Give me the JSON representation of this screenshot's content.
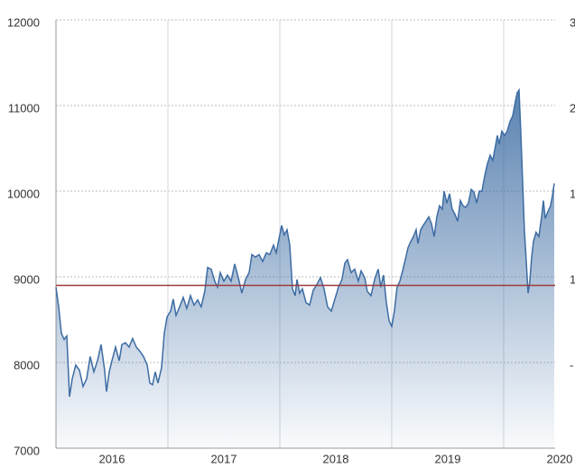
{
  "chart_data": {
    "type": "area-line",
    "x": [
      2016.0,
      2016.024,
      2016.048,
      2016.073,
      2016.097,
      2016.121,
      2016.145,
      2016.177,
      2016.21,
      2016.242,
      2016.274,
      2016.306,
      2016.339,
      2016.371,
      2016.403,
      2016.435,
      2016.452,
      2016.476,
      2016.5,
      2016.532,
      2016.565,
      2016.589,
      2016.621,
      2016.653,
      2016.685,
      2016.718,
      2016.75,
      2016.782,
      2016.815,
      2016.839,
      2016.863,
      2016.887,
      2016.911,
      2016.944,
      2016.968,
      2016.992,
      2017.024,
      2017.048,
      2017.073,
      2017.105,
      2017.137,
      2017.169,
      2017.202,
      2017.234,
      2017.266,
      2017.298,
      2017.331,
      2017.355,
      2017.387,
      2017.419,
      2017.444,
      2017.468,
      2017.5,
      2017.532,
      2017.565,
      2017.597,
      2017.629,
      2017.661,
      2017.694,
      2017.726,
      2017.75,
      2017.782,
      2017.815,
      2017.847,
      2017.879,
      2017.911,
      2017.944,
      2017.968,
      2017.992,
      2018.016,
      2018.04,
      2018.065,
      2018.089,
      2018.113,
      2018.137,
      2018.153,
      2018.177,
      2018.202,
      2018.234,
      2018.266,
      2018.298,
      2018.331,
      2018.363,
      2018.395,
      2018.427,
      2018.46,
      2018.492,
      2018.524,
      2018.556,
      2018.581,
      2018.605,
      2018.637,
      2018.669,
      2018.702,
      2018.726,
      2018.758,
      2018.782,
      2018.815,
      2018.847,
      2018.879,
      2018.903,
      2018.927,
      2018.952,
      2018.976,
      2019.0,
      2019.024,
      2019.048,
      2019.073,
      2019.097,
      2019.121,
      2019.145,
      2019.169,
      2019.194,
      2019.218,
      2019.234,
      2019.258,
      2019.282,
      2019.306,
      2019.331,
      2019.355,
      2019.379,
      2019.403,
      2019.427,
      2019.452,
      2019.468,
      2019.492,
      2019.516,
      2019.54,
      2019.565,
      2019.589,
      2019.613,
      2019.637,
      2019.661,
      2019.685,
      2019.71,
      2019.734,
      2019.758,
      2019.782,
      2019.806,
      2019.831,
      2019.855,
      2019.879,
      2019.903,
      2019.927,
      2019.944,
      2019.96,
      2019.984,
      2020.008,
      2020.032,
      2020.056,
      2020.081,
      2020.105,
      2020.121,
      2020.137,
      2020.153,
      2020.169,
      2020.185,
      2020.202,
      2020.218,
      2020.234,
      2020.25,
      2020.266,
      2020.29,
      2020.315,
      2020.339,
      2020.355,
      2020.371,
      2020.395,
      2020.419,
      2020.435,
      2020.452
    ],
    "values": [
      8880,
      8650,
      8340,
      8270,
      8310,
      7600,
      7810,
      7970,
      7910,
      7720,
      7810,
      8070,
      7890,
      8020,
      8210,
      7910,
      7660,
      7890,
      8020,
      8180,
      8020,
      8210,
      8230,
      8180,
      8280,
      8180,
      8130,
      8070,
      7970,
      7760,
      7740,
      7890,
      7760,
      7940,
      8340,
      8530,
      8600,
      8740,
      8550,
      8650,
      8760,
      8630,
      8780,
      8670,
      8730,
      8650,
      8840,
      9110,
      9090,
      8950,
      8880,
      9050,
      8950,
      9020,
      8950,
      9150,
      8990,
      8810,
      8970,
      9050,
      9260,
      9230,
      9260,
      9180,
      9280,
      9260,
      9370,
      9280,
      9440,
      9600,
      9490,
      9550,
      9370,
      8860,
      8780,
      8970,
      8810,
      8860,
      8700,
      8670,
      8840,
      8910,
      8990,
      8860,
      8650,
      8600,
      8740,
      8880,
      8970,
      9160,
      9200,
      9050,
      9090,
      8950,
      9070,
      8990,
      8830,
      8780,
      8970,
      9090,
      8880,
      9020,
      8700,
      8490,
      8420,
      8600,
      8880,
      8950,
      9070,
      9200,
      9340,
      9410,
      9470,
      9550,
      9390,
      9550,
      9600,
      9650,
      9700,
      9620,
      9470,
      9700,
      9830,
      9790,
      10000,
      9860,
      9970,
      9790,
      9730,
      9650,
      9890,
      9830,
      9810,
      9860,
      10020,
      9990,
      9860,
      10000,
      10000,
      10180,
      10320,
      10420,
      10360,
      10530,
      10650,
      10550,
      10700,
      10650,
      10700,
      10810,
      10880,
      11050,
      11150,
      11180,
      10700,
      10130,
      9550,
      9180,
      8810,
      8950,
      9230,
      9410,
      9520,
      9470,
      9700,
      9890,
      9680,
      9760,
      9830,
      9940,
      10090
    ],
    "color": "#3d6ca3",
    "xlim": [
      2016,
      2020.46
    ],
    "ylim": [
      7000,
      12000
    ],
    "yticks": [
      7000,
      8000,
      9000,
      10000,
      11000,
      12000
    ],
    "xticks": [
      {
        "value": 2016.5,
        "label": "2016"
      },
      {
        "value": 2017.5,
        "label": "2017"
      },
      {
        "value": 2018.5,
        "label": "2018"
      },
      {
        "value": 2019.5,
        "label": "2019"
      },
      {
        "value": 2020.5,
        "label": "2020"
      }
    ],
    "x_grid": [
      2017,
      2018,
      2019,
      2020
    ],
    "y2_tick_labels": [
      "3",
      "2",
      "1",
      "1",
      "-"
    ],
    "reference_line": {
      "value": 8900,
      "color": "#9e3b3b"
    },
    "grid": true
  }
}
